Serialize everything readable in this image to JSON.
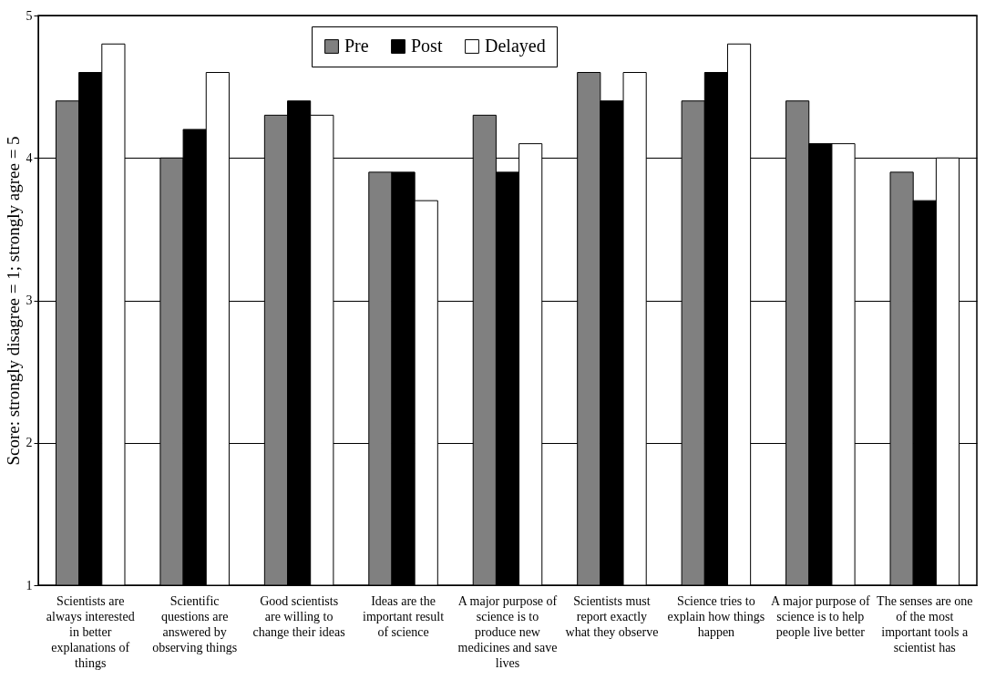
{
  "chart_data": {
    "type": "bar",
    "ylabel": "Score: strongly disagree = 1; strongly agree = 5",
    "categories": [
      "Scientists are always interested in better explanations of things",
      "Scientific questions are answered by observing things",
      "Good scientists are willing to change their ideas",
      "Ideas are the important result of science",
      "A major purpose of science is to produce new medicines and save lives",
      "Scientists must report exactly what they observe",
      "Science tries to explain how things happen",
      "A major purpose of science is to help people live better",
      "The senses are one of the most important tools a scientist has"
    ],
    "series": [
      {
        "name": "Pre",
        "color": "#808080",
        "values": [
          4.4,
          4.0,
          4.3,
          3.9,
          4.3,
          4.6,
          4.4,
          4.4,
          3.9
        ]
      },
      {
        "name": "Post",
        "color": "#000000",
        "values": [
          4.6,
          4.2,
          4.4,
          3.9,
          3.9,
          4.4,
          4.6,
          4.1,
          3.7
        ]
      },
      {
        "name": "Delayed",
        "color": "#ffffff",
        "values": [
          4.8,
          4.6,
          4.3,
          3.7,
          4.1,
          4.6,
          4.8,
          4.1,
          4.0
        ]
      }
    ],
    "ylim": [
      1,
      5
    ],
    "yticks": [
      1,
      2,
      3,
      4,
      5
    ],
    "grid": "y",
    "legend": "top"
  }
}
